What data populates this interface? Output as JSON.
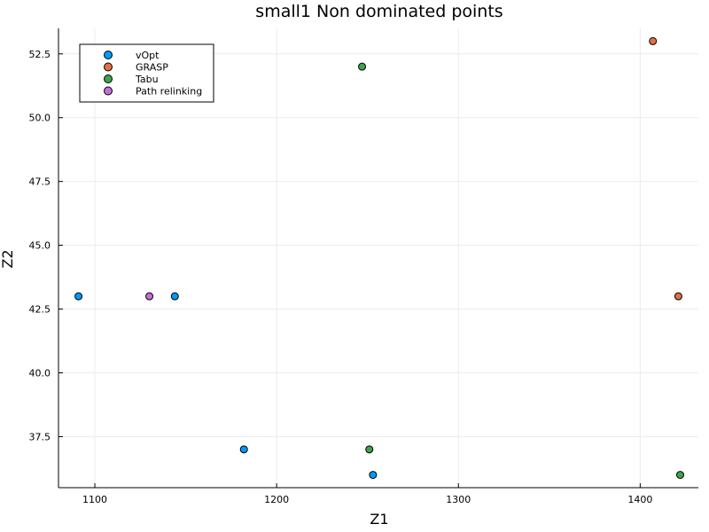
{
  "chart_data": {
    "type": "scatter",
    "title": "small1 Non dominated points",
    "xlabel": "Z1",
    "ylabel": "Z2",
    "xlim": [
      1080,
      1432
    ],
    "ylim": [
      35.5,
      53.5
    ],
    "xticks": [
      1100,
      1200,
      1300,
      1400
    ],
    "yticks": [
      37.5,
      40.0,
      42.5,
      45.0,
      47.5,
      50.0,
      52.5
    ],
    "grid": true,
    "legend_position": "top-left",
    "series": [
      {
        "name": "vOpt",
        "color": "#009af9",
        "points": [
          [
            1091,
            43
          ],
          [
            1144,
            43
          ],
          [
            1182,
            37
          ],
          [
            1253,
            36
          ]
        ]
      },
      {
        "name": "GRASP",
        "color": "#e26f46",
        "points": [
          [
            1407,
            53
          ],
          [
            1421,
            43
          ]
        ]
      },
      {
        "name": "Tabu",
        "color": "#3da44d",
        "points": [
          [
            1247,
            52
          ],
          [
            1251,
            37
          ],
          [
            1422,
            36
          ]
        ]
      },
      {
        "name": "Path relinking",
        "color": "#c271d2",
        "points": [
          [
            1130,
            43
          ]
        ]
      }
    ]
  }
}
